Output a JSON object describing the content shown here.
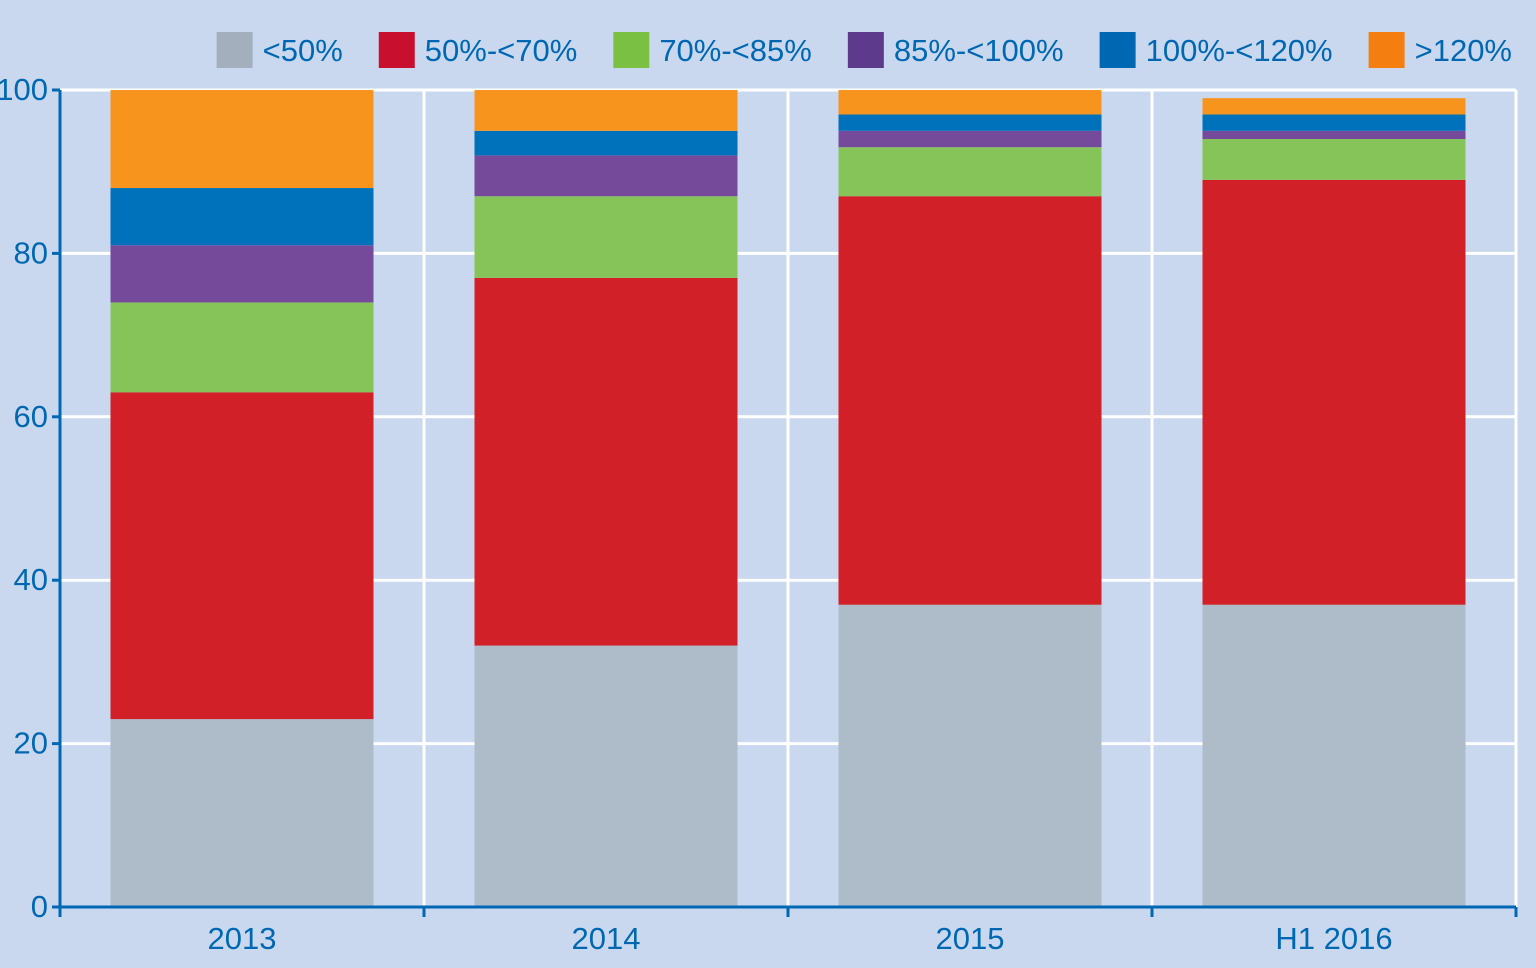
{
  "chart_data": {
    "type": "bar",
    "stacked": true,
    "title": "",
    "xlabel": "",
    "ylabel": "",
    "categories": [
      "2013",
      "2014",
      "2015",
      "H1 2016"
    ],
    "ylim": [
      0,
      100
    ],
    "yticks": [
      0,
      20,
      40,
      60,
      80,
      100
    ],
    "grid": true,
    "legend_position": "top-right",
    "series": [
      {
        "name": "<50%",
        "color": "#aebbc9",
        "legend_color": "#a3afbc",
        "values": [
          23,
          32,
          37,
          37
        ]
      },
      {
        "name": "50%-<70%",
        "color": "#d22028",
        "legend_color": "#c8102e",
        "values": [
          40,
          45,
          50,
          52
        ]
      },
      {
        "name": "70%-<85%",
        "color": "#86c45a",
        "legend_color": "#7ac143",
        "values": [
          11,
          10,
          6,
          5
        ]
      },
      {
        "name": "85%-<100%",
        "color": "#754a9b",
        "legend_color": "#5e3a8c",
        "values": [
          7,
          5,
          2,
          1
        ]
      },
      {
        "name": "100%-<120%",
        "color": "#0072bc",
        "legend_color": "#0068b3",
        "values": [
          7,
          3,
          2,
          2
        ]
      },
      {
        "name": ">120%",
        "color": "#f7941e",
        "legend_color": "#f47e0f",
        "values": [
          12,
          5,
          3,
          2
        ]
      }
    ]
  },
  "colors": {
    "background": "#c9d8ef",
    "gridline": "#ffffff",
    "axis": "#0068b3",
    "text": "#0068b3"
  }
}
